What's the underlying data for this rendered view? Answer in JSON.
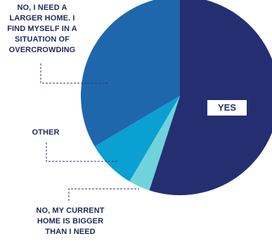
{
  "chart_data": {
    "type": "pie",
    "start_angle_deg": 0,
    "direction": "clockwise",
    "slices": [
      {
        "label": "YES",
        "value": 55,
        "color": "#262e72"
      },
      {
        "label": "NO, MY CURRENT\nHOME IS BIGGER\nTHAN I NEED",
        "value": 3.5,
        "color": "#6fd3dc"
      },
      {
        "label": "OTHER",
        "value": 8,
        "color": "#0aa0d1"
      },
      {
        "label": "NO, I NEED A\nLARGER HOME. I\nFIND MYSELF IN A\nSITUATION OF\nOVERCROWDING",
        "value": 33.5,
        "color": "#1e67ad"
      }
    ]
  }
}
